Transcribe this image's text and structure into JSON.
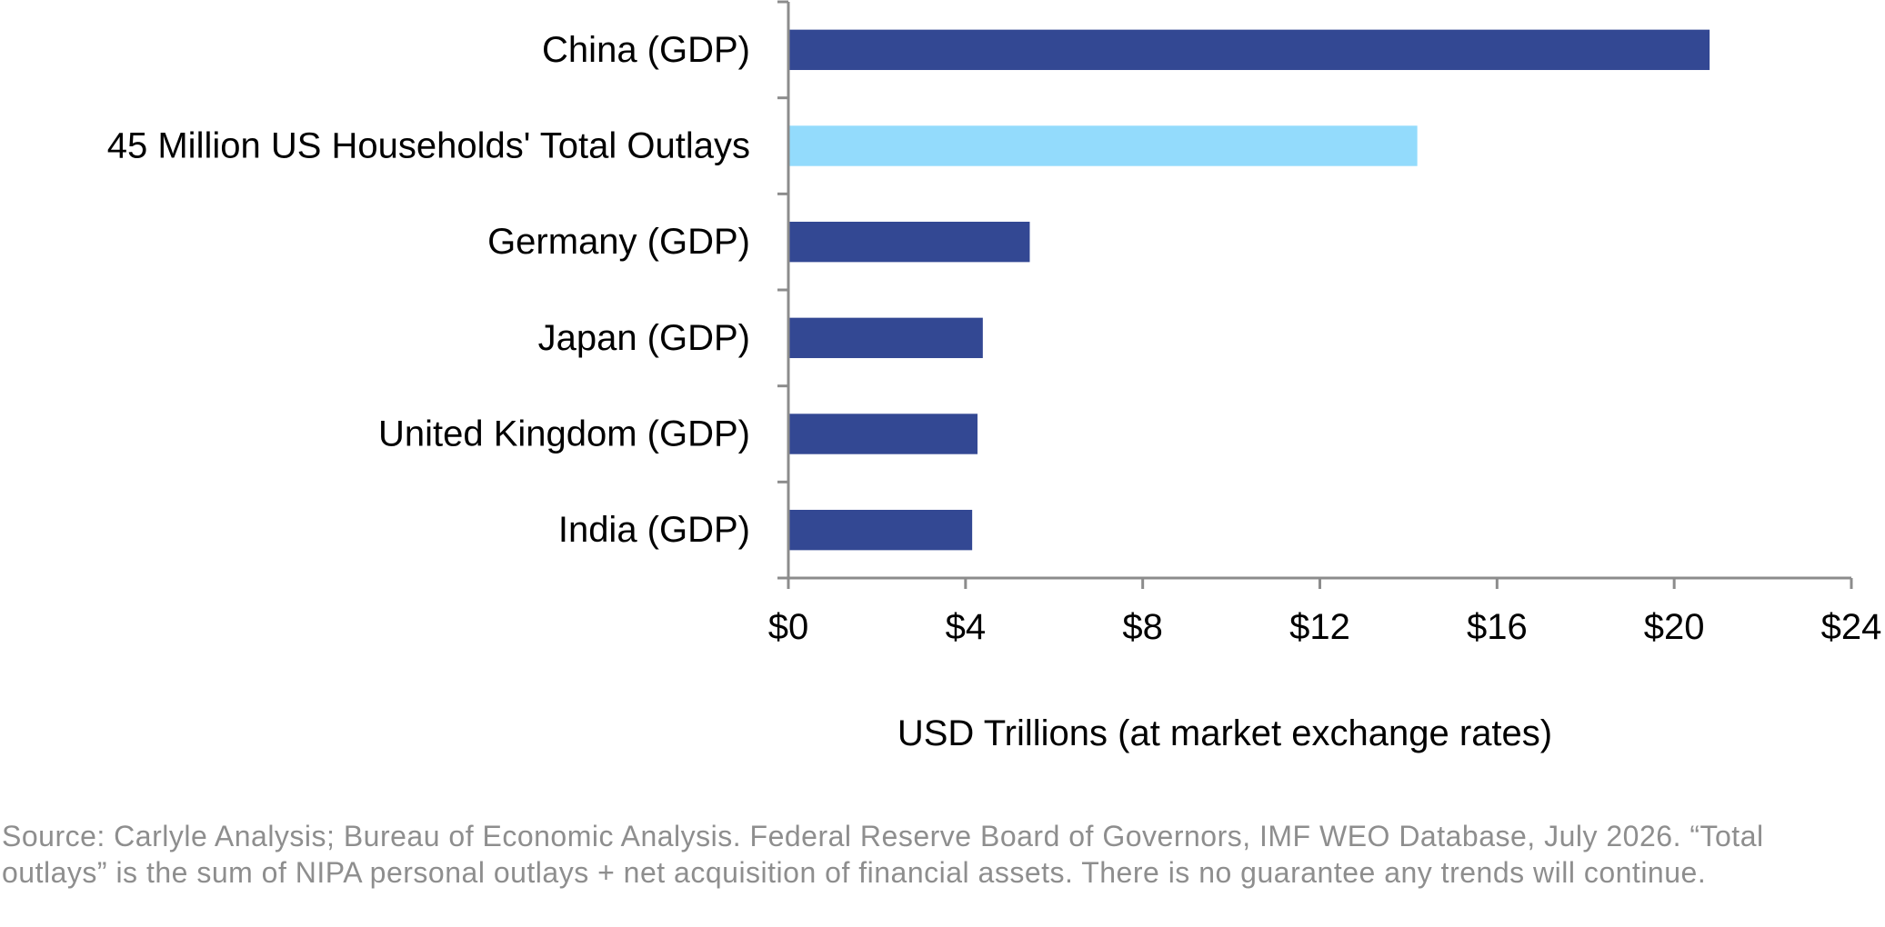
{
  "chart_data": {
    "type": "bar",
    "orientation": "horizontal",
    "categories": [
      "China (GDP)",
      "45 Million US Households' Total Outlays",
      "Germany (GDP)",
      "Japan (GDP)",
      "United Kingdom (GDP)",
      "India (GDP)"
    ],
    "values": [
      20.8,
      14.2,
      5.45,
      4.39,
      4.27,
      4.15
    ],
    "bar_colors": [
      "#334893",
      "#93dbfc",
      "#334893",
      "#334893",
      "#334893",
      "#334893"
    ],
    "xlabel": "USD Trillions (at market exchange rates)",
    "xlim": [
      0,
      24
    ],
    "x_ticks": [
      0,
      4,
      8,
      12,
      16,
      20,
      24
    ],
    "x_tick_labels": [
      "$0",
      "$4",
      "$8",
      "$12",
      "$16",
      "$20",
      "$24"
    ],
    "grid": false,
    "axis_color": "#8c8c8c"
  },
  "footnote": "Source: Carlyle Analysis; Bureau of Economic Analysis. Federal Reserve Board of Governors, IMF WEO Database, July 2026.  “Total outlays” is the sum of NIPA personal outlays + net acquisition of financial assets. There is no guarantee any trends will continue."
}
